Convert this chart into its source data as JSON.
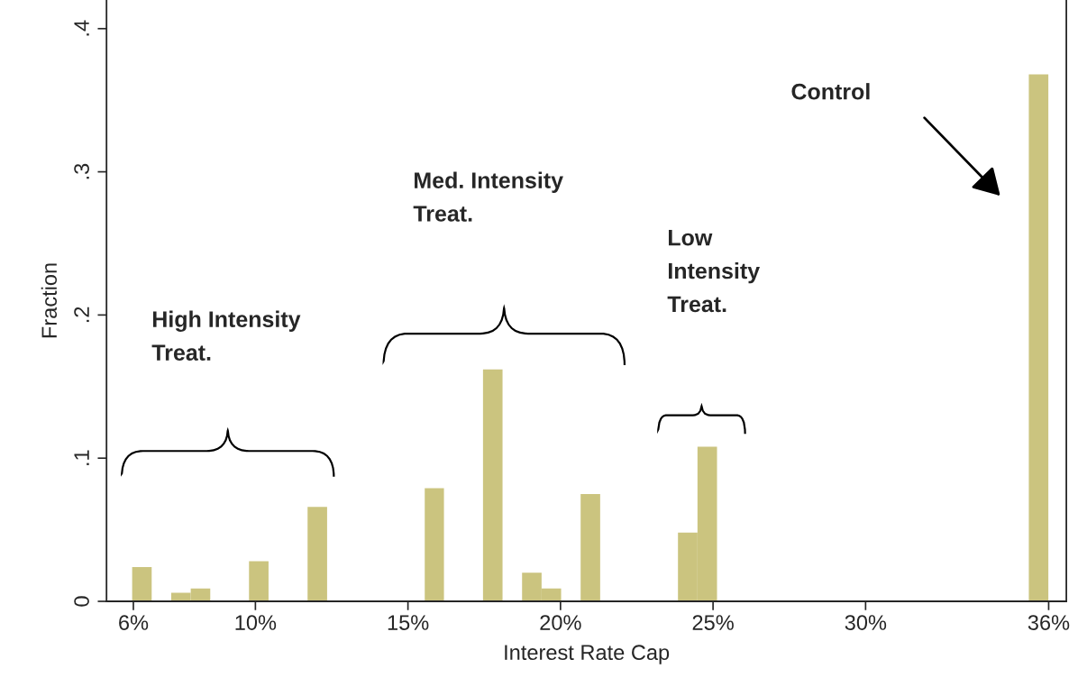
{
  "chart_data": {
    "type": "histogram",
    "xlabel": "Interest Rate Cap",
    "ylabel": "Fraction",
    "bins": [
      5.96,
      6.6,
      7.24,
      7.88,
      8.52,
      9.16,
      9.79,
      10.43,
      11.07,
      11.71,
      12.35,
      12.99,
      13.63,
      14.27,
      14.91,
      15.55,
      16.18,
      16.82,
      17.46,
      18.1,
      18.74,
      19.38,
      20.02,
      20.66,
      21.3,
      21.94,
      22.57,
      23.21,
      23.85,
      24.49,
      25.13,
      25.77,
      26.41,
      27.05,
      27.69,
      28.33,
      28.96,
      29.6,
      30.24,
      30.88,
      31.52,
      32.16,
      32.8,
      33.44,
      34.08,
      34.72,
      35.35,
      35.99
    ],
    "values": [
      0.024,
      0,
      0.006,
      0.009,
      0,
      0,
      0.028,
      0,
      0,
      0.066,
      0,
      0,
      0,
      0,
      0,
      0.079,
      0,
      0,
      0.162,
      0,
      0.02,
      0.009,
      0,
      0.075,
      0,
      0,
      0,
      0,
      0.048,
      0.108,
      0,
      0,
      0,
      0,
      0,
      0,
      0,
      0,
      0,
      0,
      0,
      0,
      0,
      0,
      0,
      0,
      0.368
    ],
    "color": "#cbc47f",
    "xlim": [
      5.12,
      36.58
    ],
    "ylim": [
      0,
      0.42
    ],
    "xticks": [
      {
        "value": 6,
        "label": "6%"
      },
      {
        "value": 10,
        "label": "10%"
      },
      {
        "value": 15,
        "label": "15%"
      },
      {
        "value": 20,
        "label": "20%"
      },
      {
        "value": 25,
        "label": "25%"
      },
      {
        "value": 30,
        "label": "30%"
      },
      {
        "value": 36,
        "label": "36%"
      }
    ],
    "yticks": [
      0,
      {
        "value": 0.1,
        "label": ".1"
      },
      {
        "value": 0.2,
        "label": ".2"
      },
      {
        "value": 0.3,
        "label": ".3"
      },
      {
        "value": 0.4,
        "label": ".4"
      }
    ],
    "grid": false,
    "legend": false,
    "annotations": [
      {
        "text": "High Intensity\nTreat."
      },
      {
        "text": "Med. Intensity\nTreat."
      },
      {
        "text": "Low\nIntensity\nTreat."
      },
      "Control"
    ]
  }
}
